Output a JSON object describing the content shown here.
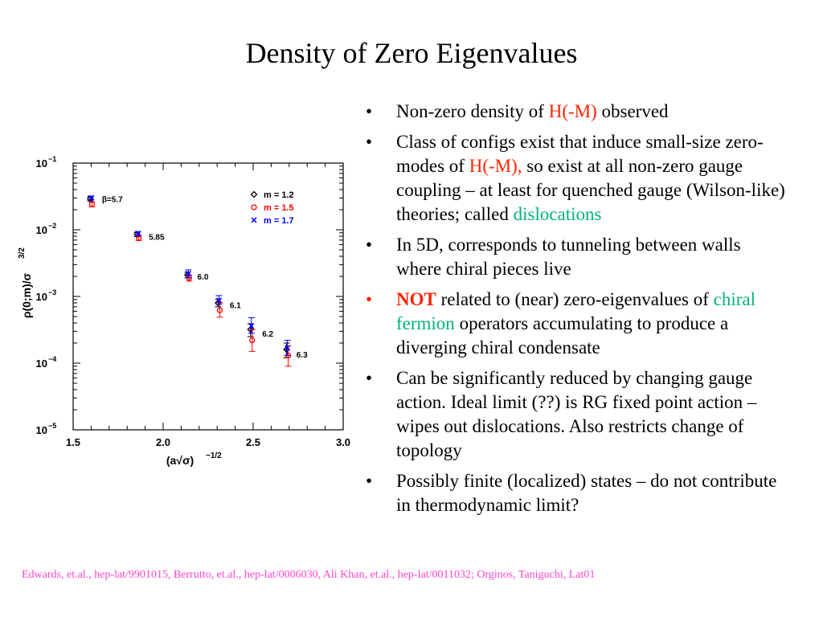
{
  "slide": {
    "title": "Density of Zero Eigenvalues",
    "footer": "Edwards, et.al., hep-lat/9901015, Berrutto, et.al., hep-lat/0006030, Ali Khan, et.al., hep-lat/0011032; Orginos, Taniguchi, Lat01"
  },
  "bullets": [
    {
      "marker": "•",
      "parts": [
        {
          "text": "Non-zero density of ",
          "style": "plain"
        },
        {
          "text": "H(-M)",
          "style": "red"
        },
        {
          "text": " observed",
          "style": "plain"
        }
      ]
    },
    {
      "marker": "•",
      "parts": [
        {
          "text": "Class of configs exist that induce small-size zero-modes of ",
          "style": "plain"
        },
        {
          "text": "H(-M),",
          "style": "red"
        },
        {
          "text": " so exist at all non-zero gauge coupling – at least for quenched gauge (Wilson-like) theories; called ",
          "style": "plain"
        },
        {
          "text": "dislocations",
          "style": "green"
        }
      ]
    },
    {
      "marker": "•",
      "parts": [
        {
          "text": "In 5D, corresponds to tunneling between walls where chiral pieces live",
          "style": "plain"
        }
      ]
    },
    {
      "marker": "•",
      "marker_color": "#ff2200",
      "parts": [
        {
          "text": "NOT",
          "style": "red-bold"
        },
        {
          "text": " related to (near) zero-eigenvalues of ",
          "style": "plain"
        },
        {
          "text": "chiral fermion",
          "style": "green"
        },
        {
          "text": " operators accumulating to produce a diverging chiral condensate",
          "style": "plain"
        }
      ]
    },
    {
      "marker": "•",
      "parts": [
        {
          "text": "Can be significantly reduced by changing gauge action. Ideal limit (??) is RG fixed point action – wipes out dislocations. Also restricts change of topology",
          "style": "plain"
        }
      ]
    },
    {
      "marker": "•",
      "parts": [
        {
          "text": "Possibly finite (localized) states – do not contribute in thermodynamic limit?",
          "style": "plain"
        }
      ]
    }
  ],
  "chart_data": {
    "type": "scatter",
    "xlabel": "(a√σ)",
    "xlabel_exp": "−1/2",
    "ylabel": "ρ(0;m)/σ",
    "ylabel_exp": "3/2",
    "xlim": [
      1.5,
      3.0
    ],
    "ylim": [
      1e-05,
      0.1
    ],
    "yscale": "log",
    "xticks": [
      "1.5",
      "2.0",
      "2.5",
      "3.0"
    ],
    "yticks": [
      {
        "base": "10",
        "exp": "−1"
      },
      {
        "base": "10",
        "exp": "−2"
      },
      {
        "base": "10",
        "exp": "−3"
      },
      {
        "base": "10",
        "exp": "−4"
      },
      {
        "base": "10",
        "exp": "−5"
      }
    ],
    "legend_position": "top-right",
    "series": [
      {
        "name": "m = 1.2",
        "marker": "diamond",
        "color": "#000000",
        "x": [
          1.6,
          1.86,
          2.14,
          2.31,
          2.49,
          2.69
        ],
        "y": [
          0.029,
          0.0085,
          0.0021,
          0.0008,
          0.00032,
          0.00016
        ],
        "err_up": [
          0.002,
          0.0006,
          0.0002,
          0.0001,
          7e-05,
          4e-05
        ],
        "err_dn": [
          0.002,
          0.0006,
          0.0002,
          0.0001,
          7e-05,
          4e-05
        ]
      },
      {
        "name": "m = 1.5",
        "marker": "circle",
        "color": "#ff0000",
        "x": [
          1.6,
          1.86,
          2.14,
          2.31,
          2.49,
          2.69
        ],
        "y": [
          0.024,
          0.0075,
          0.0019,
          0.00062,
          0.00022,
          0.00013
        ],
        "err_up": [
          0.002,
          0.0006,
          0.0002,
          0.00018,
          0.0001,
          5e-05
        ],
        "err_dn": [
          0.002,
          0.0006,
          0.0002,
          0.00013,
          7e-05,
          4e-05
        ]
      },
      {
        "name": "m = 1.7",
        "marker": "x",
        "color": "#0000ff",
        "x": [
          1.6,
          1.86,
          2.14,
          2.31,
          2.49,
          2.69
        ],
        "y": [
          0.03,
          0.0088,
          0.0022,
          0.00088,
          0.00036,
          0.00017
        ],
        "err_up": [
          0.002,
          0.0006,
          0.0003,
          0.00015,
          0.00012,
          5e-05
        ],
        "err_dn": [
          0.002,
          0.0006,
          0.0003,
          0.00012,
          8e-05,
          4e-05
        ]
      }
    ],
    "annotations": [
      {
        "text": "β=5.7",
        "x": 1.66,
        "y": 0.029
      },
      {
        "text": "5.85",
        "x": 1.92,
        "y": 0.0079
      },
      {
        "text": "6.0",
        "x": 2.19,
        "y": 0.002
      },
      {
        "text": "6.1",
        "x": 2.37,
        "y": 0.00075
      },
      {
        "text": "6.2",
        "x": 2.55,
        "y": 0.00028
      },
      {
        "text": "6.3",
        "x": 2.74,
        "y": 0.000135
      }
    ]
  }
}
